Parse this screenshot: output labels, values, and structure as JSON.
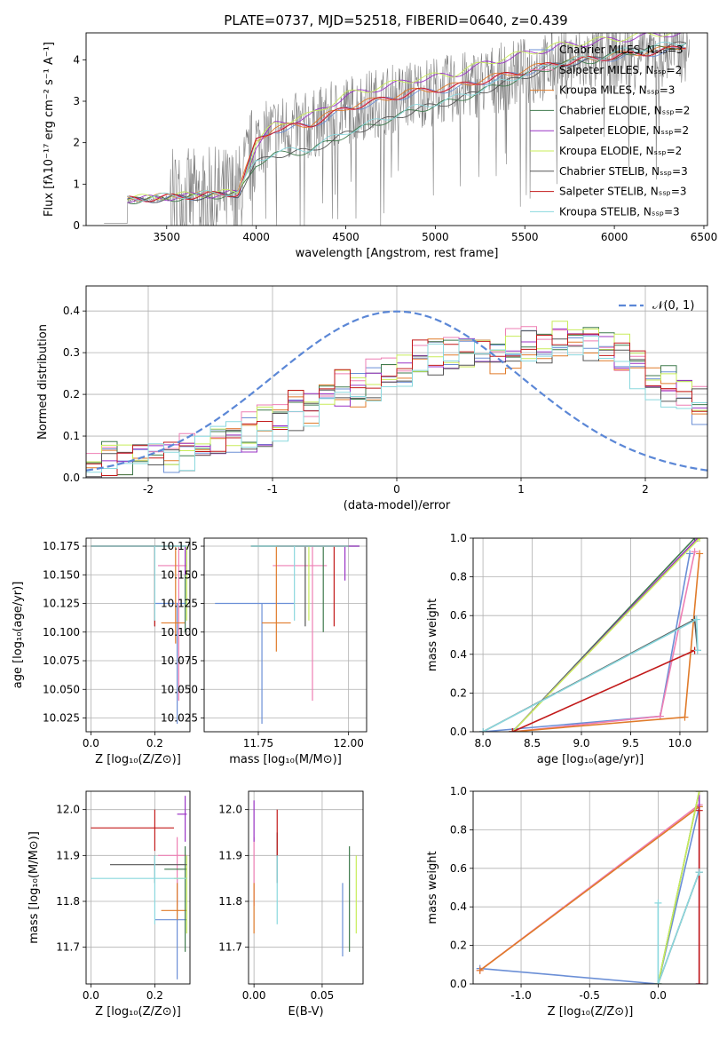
{
  "figure_title": "PLATE=0737, MJD=52518, FIBERID=0640, z=0.439",
  "colors": {
    "Chabrier MILES": "#6b8fd6",
    "Salpeter MILES": "#ee7fb4",
    "Kroupa MILES": "#e07b2a",
    "Chabrier ELODIE": "#3f7a4d",
    "Salpeter ELODIE": "#9a33c5",
    "Kroupa ELODIE": "#c8ec5a",
    "Chabrier STELIB": "#555555",
    "Salpeter STELIB": "#c21a1a",
    "Kroupa STELIB": "#8ad8de",
    "data": "#808080",
    "normal": "#5b87d6"
  },
  "chart_data": [
    {
      "id": "spectrum",
      "type": "line",
      "xlabel": "wavelength [Angstrom, rest frame]",
      "ylabel": "Flux [fλ10⁻¹⁷ erg cm⁻² s⁻¹ A⁻¹]",
      "xlim": [
        3050,
        6520
      ],
      "ylim": [
        0,
        4.65
      ],
      "xticks": [
        3500,
        4000,
        4500,
        5000,
        5500,
        6000,
        6500
      ],
      "yticks": [
        0,
        1,
        2,
        3,
        4
      ],
      "legend_position": "top-right",
      "series": [
        {
          "name": "Chabrier MILES, Nₛₛₚ=3",
          "key": "Chabrier MILES"
        },
        {
          "name": "Salpeter MILES, Nₛₛₚ=2",
          "key": "Salpeter MILES"
        },
        {
          "name": "Kroupa MILES, Nₛₛₚ=3",
          "key": "Kroupa MILES"
        },
        {
          "name": "Chabrier ELODIE, Nₛₛₚ=2",
          "key": "Chabrier ELODIE"
        },
        {
          "name": "Salpeter ELODIE, Nₛₛₚ=2",
          "key": "Salpeter ELODIE"
        },
        {
          "name": "Kroupa ELODIE, Nₛₛₚ=2",
          "key": "Kroupa ELODIE"
        },
        {
          "name": "Chabrier STELIB, Nₛₛₚ=3",
          "key": "Chabrier STELIB"
        },
        {
          "name": "Salpeter STELIB, Nₛₛₚ=3",
          "key": "Salpeter STELIB"
        },
        {
          "name": "Kroupa STELIB, Nₛₛₚ=3",
          "key": "Kroupa STELIB"
        }
      ],
      "model_levels": {
        "x": [
          3300,
          3500,
          3700,
          3900,
          4000,
          4100,
          4300,
          4500,
          4700,
          4900,
          5100,
          5300,
          5500,
          5700,
          5900,
          6100,
          6300,
          6400
        ],
        "blue_red": [
          0.6,
          0.65,
          0.7,
          0.75,
          2.0,
          2.3,
          2.4,
          2.8,
          3.0,
          3.2,
          3.3,
          3.5,
          3.7,
          3.9,
          4.0,
          4.1,
          4.2,
          4.3
        ],
        "stelib_low": [
          0.6,
          0.65,
          0.7,
          0.75,
          1.5,
          1.7,
          1.8,
          2.2,
          2.5,
          2.8,
          3.0,
          3.3,
          3.6,
          3.9,
          4.0,
          4.2,
          4.3,
          4.4
        ],
        "elodie_high": [
          0.6,
          0.65,
          0.7,
          0.75,
          1.9,
          2.4,
          2.6,
          3.1,
          3.3,
          3.5,
          3.6,
          3.9,
          4.1,
          4.3,
          4.4,
          4.5,
          4.6,
          4.6
        ]
      }
    },
    {
      "id": "residuals",
      "type": "histogram",
      "xlabel": "(data-model)/error",
      "ylabel": "Normed distribution",
      "xlim": [
        -2.5,
        2.5
      ],
      "ylim": [
        0,
        0.46
      ],
      "xticks": [
        -2,
        -1,
        0,
        1,
        2
      ],
      "yticks": [
        0.0,
        0.1,
        0.2,
        0.3,
        0.4
      ],
      "legend": [
        "𝒩(0, 1)"
      ],
      "legend_position": "top-right",
      "bins": 40,
      "envelope": [
        0.03,
        0.04,
        0.04,
        0.05,
        0.06,
        0.06,
        0.07,
        0.08,
        0.09,
        0.1,
        0.11,
        0.12,
        0.14,
        0.16,
        0.17,
        0.19,
        0.21,
        0.22,
        0.23,
        0.24,
        0.26,
        0.28,
        0.3,
        0.31,
        0.3,
        0.29,
        0.3,
        0.31,
        0.32,
        0.33,
        0.34,
        0.34,
        0.33,
        0.31,
        0.29,
        0.26,
        0.24,
        0.22,
        0.2,
        0.18
      ]
    },
    {
      "id": "age_vs_Z",
      "type": "scatter",
      "xlabel": "Z [log₁₀(Z/Z⊙)]",
      "ylabel": "age  [log₁₀(age/yr)]",
      "xlim": [
        -0.015,
        0.31
      ],
      "ylim": [
        10.013,
        10.182
      ],
      "xticks": [
        0.0,
        0.2
      ],
      "yticks": [
        10.025,
        10.05,
        10.075,
        10.1,
        10.125,
        10.15,
        10.175
      ],
      "points": [
        {
          "key": "Chabrier MILES",
          "x": 0.27,
          "y": 10.125,
          "xe": [
            0.2,
            0.3
          ],
          "ye": [
            10.02,
            10.125
          ]
        },
        {
          "key": "Salpeter MILES",
          "x": 0.275,
          "y": 10.158,
          "xe": [
            0.21,
            0.3
          ],
          "ye": [
            10.04,
            10.175
          ]
        },
        {
          "key": "Kroupa MILES",
          "x": 0.265,
          "y": 10.108,
          "xe": [
            0.22,
            0.295
          ],
          "ye": [
            10.09,
            10.175
          ]
        },
        {
          "key": "Chabrier ELODIE",
          "x": 0.295,
          "y": 10.175,
          "xe": [
            0.0,
            0.3
          ],
          "ye": [
            10.1,
            10.175
          ]
        },
        {
          "key": "Salpeter ELODIE",
          "x": 0.295,
          "y": 10.175,
          "xe": [
            0.0,
            0.3
          ],
          "ye": [
            10.15,
            10.175
          ]
        },
        {
          "key": "Kroupa ELODIE",
          "x": 0.3,
          "y": 10.175,
          "xe": [
            0.0,
            0.3
          ],
          "ye": [
            10.11,
            10.175
          ]
        },
        {
          "key": "Chabrier STELIB",
          "x": 0.2,
          "y": 10.175,
          "xe": [
            0.0,
            0.3
          ],
          "ye": [
            10.105,
            10.175
          ]
        },
        {
          "key": "Salpeter STELIB",
          "x": 0.2,
          "y": 10.175,
          "xe": [
            0.0,
            0.25
          ],
          "ye": [
            10.105,
            10.175
          ]
        },
        {
          "key": "Kroupa STELIB",
          "x": 0.2,
          "y": 10.175,
          "xe": [
            0.0,
            0.3
          ],
          "ye": [
            10.11,
            10.175
          ]
        }
      ]
    },
    {
      "id": "age_vs_mass",
      "type": "scatter",
      "xlabel": "mass [log₁₀(M/M⊙)]",
      "ylim": [
        10.013,
        10.182
      ],
      "xlim": [
        11.6,
        12.05
      ],
      "xticks": [
        11.75,
        12.0
      ],
      "yticks": [
        10.025,
        10.05,
        10.075,
        10.1,
        10.125,
        10.15,
        10.175
      ],
      "points": [
        {
          "key": "Chabrier MILES",
          "x": 11.76,
          "y": 10.125,
          "xe": [
            11.63,
            11.85
          ],
          "ye": [
            10.02,
            10.125
          ]
        },
        {
          "key": "Salpeter MILES",
          "x": 11.9,
          "y": 10.158,
          "xe": [
            11.79,
            11.94
          ],
          "ye": [
            10.04,
            10.175
          ]
        },
        {
          "key": "Kroupa MILES",
          "x": 11.8,
          "y": 10.108,
          "xe": [
            11.76,
            11.84
          ],
          "ye": [
            10.083,
            10.175
          ]
        },
        {
          "key": "Chabrier ELODIE",
          "x": 11.93,
          "y": 10.175,
          "xe": [
            11.73,
            12.03
          ],
          "ye": [
            10.1,
            10.175
          ]
        },
        {
          "key": "Salpeter ELODIE",
          "x": 11.99,
          "y": 10.175,
          "xe": [
            11.73,
            12.03
          ],
          "ye": [
            10.145,
            10.175
          ]
        },
        {
          "key": "Kroupa ELODIE",
          "x": 11.89,
          "y": 10.175,
          "xe": [
            11.73,
            12.0
          ],
          "ye": [
            10.11,
            10.175
          ]
        },
        {
          "key": "Chabrier STELIB",
          "x": 11.88,
          "y": 10.175,
          "xe": [
            11.73,
            12.0
          ],
          "ye": [
            10.105,
            10.175
          ]
        },
        {
          "key": "Salpeter STELIB",
          "x": 11.96,
          "y": 10.175,
          "xe": [
            11.8,
            12.0
          ],
          "ye": [
            10.105,
            10.175
          ]
        },
        {
          "key": "Kroupa STELIB",
          "x": 11.85,
          "y": 10.175,
          "xe": [
            11.73,
            12.0
          ],
          "ye": [
            10.11,
            10.175
          ]
        }
      ]
    },
    {
      "id": "weight_vs_age",
      "type": "line",
      "xlabel": "age  [log₁₀(age/yr)]",
      "ylabel": "mass weight",
      "xlim": [
        7.9,
        10.28
      ],
      "ylim": [
        0,
        1.0
      ],
      "xticks": [
        8.0,
        8.5,
        9.0,
        9.5,
        10.0
      ],
      "yticks": [
        0.0,
        0.2,
        0.4,
        0.6,
        0.8,
        1.0
      ],
      "series": [
        {
          "key": "Chabrier MILES",
          "x": [
            8.0,
            9.8,
            10.1
          ],
          "y": [
            0.0,
            0.08,
            0.92
          ]
        },
        {
          "key": "Salpeter MILES",
          "x": [
            8.3,
            9.8,
            10.15
          ],
          "y": [
            0.0,
            0.08,
            0.93
          ]
        },
        {
          "key": "Kroupa MILES",
          "x": [
            8.3,
            10.05,
            10.2
          ],
          "y": [
            0.0,
            0.075,
            0.92
          ]
        },
        {
          "key": "Chabrier ELODIE",
          "x": [
            8.3,
            10.15
          ],
          "y": [
            0.0,
            1.0
          ]
        },
        {
          "key": "Salpeter ELODIE",
          "x": [
            8.3,
            10.18
          ],
          "y": [
            0.0,
            1.0
          ]
        },
        {
          "key": "Kroupa ELODIE",
          "x": [
            8.3,
            10.2
          ],
          "y": [
            0.0,
            1.0
          ]
        },
        {
          "key": "Chabrier STELIB",
          "x": [
            8.0,
            10.15,
            10.18
          ],
          "y": [
            0.0,
            0.58,
            0.42
          ]
        },
        {
          "key": "Salpeter STELIB",
          "x": [
            8.3,
            10.15
          ],
          "y": [
            0.0,
            0.42
          ]
        },
        {
          "key": "Kroupa STELIB",
          "x": [
            8.0,
            10.17,
            10.18
          ],
          "y": [
            0.0,
            0.58,
            0.42
          ]
        }
      ]
    },
    {
      "id": "mass_vs_Z",
      "type": "scatter",
      "xlabel": "Z [log₁₀(Z/Z⊙)]",
      "ylabel": "mass [log₁₀(M/M⊙)]",
      "xlim": [
        -0.015,
        0.31
      ],
      "ylim": [
        11.62,
        12.04
      ],
      "xticks": [
        0.0,
        0.2
      ],
      "yticks": [
        11.7,
        11.8,
        11.9,
        12.0
      ],
      "points": [
        {
          "key": "Chabrier MILES",
          "x": 0.27,
          "y": 11.76,
          "xe": [
            0.2,
            0.3
          ],
          "ye": [
            11.63,
            11.85
          ]
        },
        {
          "key": "Salpeter MILES",
          "x": 0.27,
          "y": 11.9,
          "xe": [
            0.21,
            0.3
          ],
          "ye": [
            11.79,
            11.94
          ]
        },
        {
          "key": "Kroupa MILES",
          "x": 0.27,
          "y": 11.78,
          "xe": [
            0.22,
            0.3
          ],
          "ye": [
            11.76,
            11.84
          ]
        },
        {
          "key": "Chabrier ELODIE",
          "x": 0.295,
          "y": 11.87,
          "xe": [
            0.23,
            0.3
          ],
          "ye": [
            11.69,
            11.92
          ]
        },
        {
          "key": "Salpeter ELODIE",
          "x": 0.295,
          "y": 11.99,
          "xe": [
            0.27,
            0.3
          ],
          "ye": [
            11.93,
            12.03
          ]
        },
        {
          "key": "Kroupa ELODIE",
          "x": 0.3,
          "y": 11.85,
          "xe": [
            0.26,
            0.3
          ],
          "ye": [
            11.73,
            11.9
          ]
        },
        {
          "key": "Chabrier STELIB",
          "x": 0.2,
          "y": 11.88,
          "xe": [
            0.06,
            0.3
          ],
          "ye": [
            11.84,
            11.9
          ]
        },
        {
          "key": "Salpeter STELIB",
          "x": 0.2,
          "y": 11.96,
          "xe": [
            0.0,
            0.26
          ],
          "ye": [
            11.91,
            12.0
          ]
        },
        {
          "key": "Kroupa STELIB",
          "x": 0.2,
          "y": 11.85,
          "xe": [
            0.0,
            0.3
          ],
          "ye": [
            11.75,
            11.9
          ]
        }
      ]
    },
    {
      "id": "mass_vs_EBV",
      "type": "scatter",
      "xlabel": "E(B-V)",
      "xlim": [
        -0.004,
        0.08
      ],
      "ylim": [
        11.62,
        12.04
      ],
      "xticks": [
        0.0,
        0.05
      ],
      "yticks": [
        11.7,
        11.8,
        11.9,
        12.0
      ],
      "points": [
        {
          "key": "Chabrier MILES",
          "x": 0.065,
          "y": 11.76,
          "ye": [
            11.68,
            11.84
          ]
        },
        {
          "key": "Salpeter MILES",
          "x": 0.0,
          "y": 11.9,
          "ye": [
            11.79,
            11.94
          ]
        },
        {
          "key": "Kroupa MILES",
          "x": 0.0,
          "y": 11.79,
          "ye": [
            11.73,
            11.84
          ]
        },
        {
          "key": "Chabrier ELODIE",
          "x": 0.07,
          "y": 11.8,
          "ye": [
            11.69,
            11.92
          ]
        },
        {
          "key": "Salpeter ELODIE",
          "x": 0.0,
          "y": 11.97,
          "ye": [
            11.93,
            12.02
          ]
        },
        {
          "key": "Kroupa ELODIE",
          "x": 0.075,
          "y": 11.81,
          "ye": [
            11.73,
            11.9
          ]
        },
        {
          "key": "Chabrier STELIB",
          "x": 0.017,
          "y": 11.9,
          "ye": [
            11.84,
            11.95
          ]
        },
        {
          "key": "Salpeter STELIB",
          "x": 0.017,
          "y": 11.96,
          "ye": [
            11.9,
            12.0
          ]
        },
        {
          "key": "Kroupa STELIB",
          "x": 0.017,
          "y": 11.85,
          "ye": [
            11.75,
            11.9
          ]
        }
      ]
    },
    {
      "id": "weight_vs_Z",
      "type": "line",
      "xlabel": "Z [log₁₀(Z/Z⊙)]",
      "ylabel": "mass weight",
      "xlim": [
        -1.35,
        0.36
      ],
      "ylim": [
        0,
        1.0
      ],
      "xticks": [
        -1.0,
        -0.5,
        0.0
      ],
      "yticks": [
        0.0,
        0.2,
        0.4,
        0.6,
        0.8,
        1.0
      ],
      "series": [
        {
          "key": "Chabrier MILES",
          "x": [
            -1.3,
            0.0,
            0.3
          ],
          "y": [
            0.08,
            0.0,
            0.92
          ]
        },
        {
          "key": "Salpeter MILES",
          "x": [
            -1.3,
            0.3
          ],
          "y": [
            0.07,
            0.93
          ]
        },
        {
          "key": "Kroupa MILES",
          "x": [
            -1.3,
            0.3
          ],
          "y": [
            0.07,
            0.92
          ]
        },
        {
          "key": "Chabrier ELODIE",
          "x": [
            0.0,
            0.3
          ],
          "y": [
            0.0,
            1.0
          ]
        },
        {
          "key": "Salpeter ELODIE",
          "x": [
            0.3,
            0.3
          ],
          "y": [
            0.0,
            1.0
          ]
        },
        {
          "key": "Kroupa ELODIE",
          "x": [
            0.0,
            0.3
          ],
          "y": [
            0.0,
            1.0
          ]
        },
        {
          "key": "Chabrier STELIB",
          "x": [
            0.0,
            0.3
          ],
          "y": [
            0.0,
            0.58
          ]
        },
        {
          "key": "Salpeter STELIB",
          "x": [
            0.3,
            0.3
          ],
          "y": [
            0.0,
            0.9
          ]
        },
        {
          "key": "Kroupa STELIB",
          "x": [
            0.0,
            0.0,
            0.3
          ],
          "y": [
            0.42,
            0.0,
            0.58
          ]
        }
      ]
    }
  ]
}
